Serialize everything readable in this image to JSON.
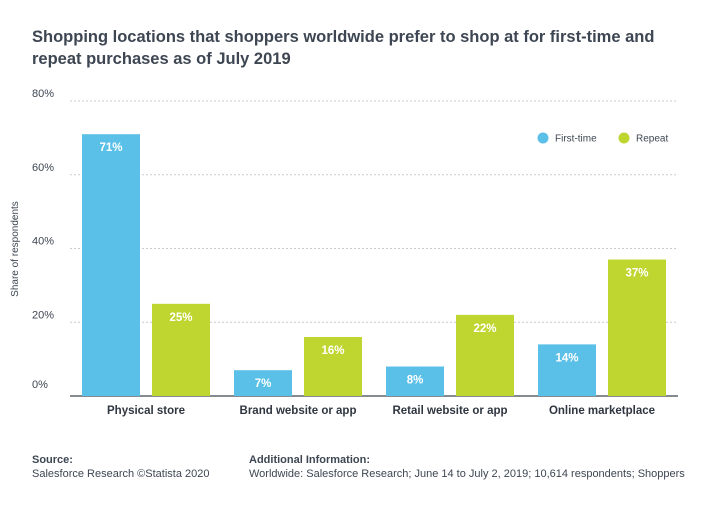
{
  "colors": {
    "first_time": "#5bc0e8",
    "repeat": "#bfd630",
    "grid": "#c9ccd1",
    "axis": "#3d4652"
  },
  "chart_data": {
    "type": "bar",
    "title": "Shopping locations that shoppers worldwide prefer to shop at for first-time and repeat purchases as of July 2019",
    "xlabel": "",
    "ylabel": "Share of respondents",
    "ylim": [
      0,
      80
    ],
    "yticks": [
      0,
      20,
      40,
      60,
      80
    ],
    "ytick_labels": [
      "0%",
      "20%",
      "40%",
      "60%",
      "80%"
    ],
    "grid": true,
    "legend_position": "top-right",
    "categories": [
      "Physical store",
      "Brand website or app",
      "Retail website or app",
      "Online marketplace"
    ],
    "series": [
      {
        "name": "First-time",
        "values": [
          71,
          7,
          8,
          14
        ],
        "labels": [
          "71%",
          "7%",
          "8%",
          "14%"
        ]
      },
      {
        "name": "Repeat",
        "values": [
          25,
          16,
          22,
          37
        ],
        "labels": [
          "25%",
          "16%",
          "22%",
          "37%"
        ]
      }
    ]
  },
  "footer": {
    "source_heading": "Source:",
    "source_text": "Salesforce Research ©Statista 2020",
    "info_heading": "Additional Information:",
    "info_text": "Worldwide: Salesforce Research; June 14 to July 2, 2019; 10,614 respondents; Shoppers"
  }
}
